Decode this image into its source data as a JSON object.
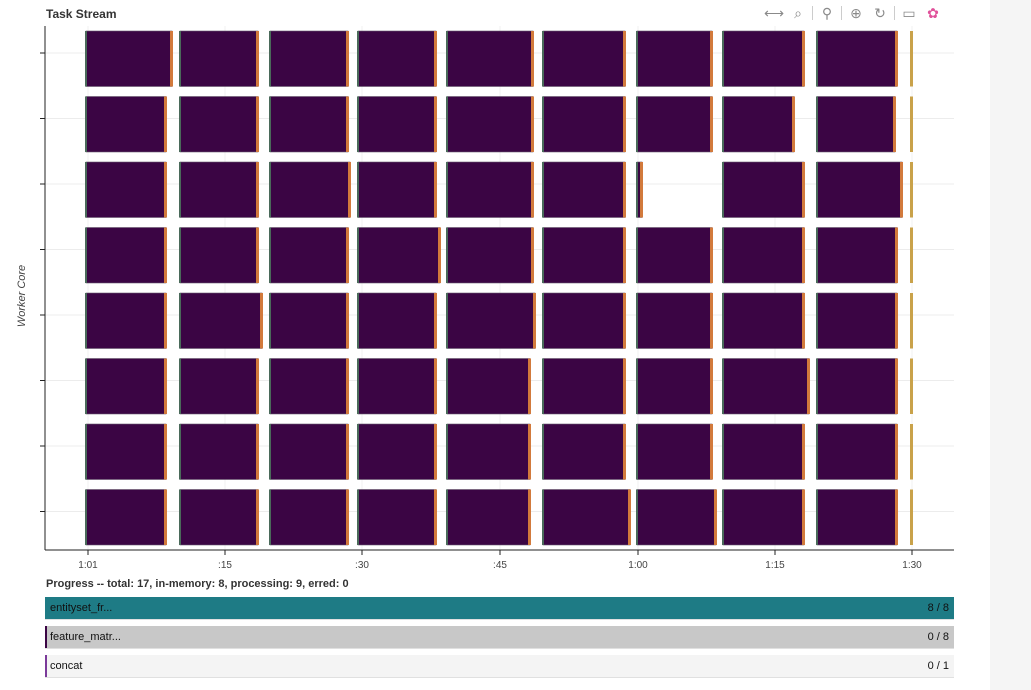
{
  "title": "Task Stream",
  "toolbar": {
    "tools": [
      {
        "name": "pan-icon",
        "glyph": "⟷",
        "active": true
      },
      {
        "name": "box-zoom-icon",
        "glyph": "⌕",
        "active": false
      },
      {
        "name": "wheel-zoom-icon",
        "glyph": "⚲",
        "active": false
      },
      {
        "name": "zoom-in-icon",
        "glyph": "⊕",
        "active": true
      },
      {
        "name": "reset-icon",
        "glyph": "↻",
        "active": false
      },
      {
        "name": "hover-icon",
        "glyph": "▭",
        "active": true
      },
      {
        "name": "bokeh-logo-icon",
        "glyph": "✿",
        "active": false
      }
    ]
  },
  "chart_data": {
    "type": "gantt",
    "ylabel": "Worker Core",
    "x_range_seconds": [
      60,
      93
    ],
    "x_ticks": [
      {
        "t": 61,
        "label": "1:01"
      },
      {
        "t": 75,
        "label": ":15"
      },
      {
        "t": 90,
        "label": ":30"
      },
      {
        "t": 105,
        "label": ":45"
      },
      {
        "t": 120,
        "label": "1:00"
      },
      {
        "t": 135,
        "label": "1:15"
      },
      {
        "t": 150,
        "label": "1:30"
      }
    ],
    "lanes": 8,
    "task_color": "#3b0544",
    "edge_color": "#d27a3c",
    "tasks": [
      {
        "lane": 0,
        "blocks": [
          [
            86,
            172
          ],
          [
            180,
            258
          ],
          [
            270,
            348
          ],
          [
            358,
            436
          ],
          [
            447,
            533
          ],
          [
            543,
            625
          ],
          [
            637,
            712
          ],
          [
            723,
            804
          ],
          [
            817,
            897
          ]
        ]
      },
      {
        "lane": 1,
        "blocks": [
          [
            86,
            166
          ],
          [
            180,
            258
          ],
          [
            270,
            348
          ],
          [
            358,
            436
          ],
          [
            447,
            533
          ],
          [
            543,
            625
          ],
          [
            637,
            712
          ],
          [
            723,
            794
          ],
          [
            817,
            895
          ]
        ]
      },
      {
        "lane": 2,
        "blocks": [
          [
            86,
            166
          ],
          [
            180,
            258
          ],
          [
            270,
            350
          ],
          [
            358,
            436
          ],
          [
            447,
            533
          ],
          [
            543,
            625
          ],
          [
            637,
            642
          ],
          [
            723,
            804
          ],
          [
            817,
            902
          ]
        ]
      },
      {
        "lane": 3,
        "blocks": [
          [
            86,
            166
          ],
          [
            180,
            258
          ],
          [
            270,
            348
          ],
          [
            358,
            440
          ],
          [
            447,
            533
          ],
          [
            543,
            625
          ],
          [
            637,
            712
          ],
          [
            723,
            804
          ],
          [
            817,
            897
          ]
        ]
      },
      {
        "lane": 4,
        "blocks": [
          [
            86,
            166
          ],
          [
            180,
            262
          ],
          [
            270,
            348
          ],
          [
            358,
            436
          ],
          [
            447,
            535
          ],
          [
            543,
            625
          ],
          [
            637,
            712
          ],
          [
            723,
            804
          ],
          [
            817,
            897
          ]
        ]
      },
      {
        "lane": 5,
        "blocks": [
          [
            86,
            166
          ],
          [
            180,
            258
          ],
          [
            270,
            348
          ],
          [
            358,
            436
          ],
          [
            447,
            530
          ],
          [
            543,
            625
          ],
          [
            637,
            712
          ],
          [
            723,
            809
          ],
          [
            817,
            897
          ]
        ]
      },
      {
        "lane": 6,
        "blocks": [
          [
            86,
            166
          ],
          [
            180,
            258
          ],
          [
            270,
            348
          ],
          [
            358,
            436
          ],
          [
            447,
            530
          ],
          [
            543,
            625
          ],
          [
            637,
            712
          ],
          [
            723,
            804
          ],
          [
            817,
            897
          ]
        ]
      },
      {
        "lane": 7,
        "blocks": [
          [
            86,
            166
          ],
          [
            180,
            258
          ],
          [
            270,
            348
          ],
          [
            358,
            436
          ],
          [
            447,
            530
          ],
          [
            543,
            630
          ],
          [
            637,
            716
          ],
          [
            723,
            804
          ],
          [
            817,
            897
          ]
        ]
      }
    ]
  },
  "progress": {
    "title": "Progress -- total: 17, in-memory: 8, processing: 9, erred: 0",
    "bars": [
      {
        "label": "entityset_fr...",
        "count": "8 / 8",
        "done": 8,
        "total": 8,
        "color": "#1e7b85"
      },
      {
        "label": "feature_matr...",
        "count": "0 / 8",
        "done": 0,
        "total": 8,
        "color": "#c8c8c8",
        "marker": "#3b0544"
      },
      {
        "label": "concat",
        "count": "0 / 1",
        "done": 0,
        "total": 1,
        "color": "#f4f4f4",
        "marker": "#7b3a9a"
      }
    ]
  }
}
